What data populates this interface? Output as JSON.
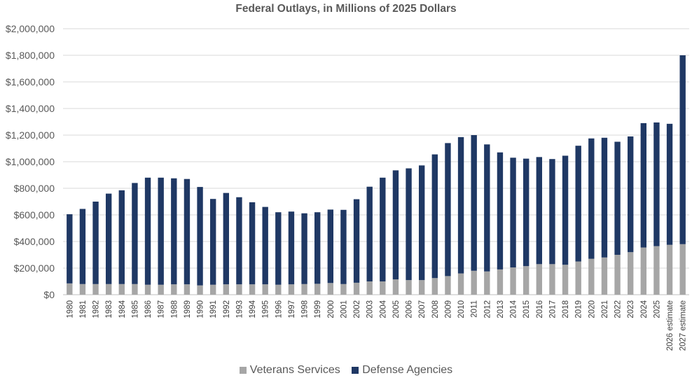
{
  "chart_data": {
    "type": "bar",
    "stacked": true,
    "title": "Federal Outlays, in Millions of 2025 Dollars",
    "xlabel": "",
    "ylabel": "",
    "ylim": [
      0,
      2000000
    ],
    "yticks": [
      0,
      200000,
      400000,
      600000,
      800000,
      1000000,
      1200000,
      1400000,
      1600000,
      1800000,
      2000000
    ],
    "ytick_labels": [
      "$0",
      "$200,000",
      "$400,000",
      "$600,000",
      "$800,000",
      "$1,000,000",
      "$1,200,000",
      "$1,400,000",
      "$1,600,000",
      "$1,800,000",
      "$2,000,000"
    ],
    "grid": true,
    "legend_position": "bottom",
    "categories": [
      "1980",
      "1981",
      "1982",
      "1983",
      "1984",
      "1985",
      "1986",
      "1987",
      "1988",
      "1989",
      "1990",
      "1991",
      "1992",
      "1993",
      "1994",
      "1995",
      "1996",
      "1997",
      "1998",
      "1999",
      "2000",
      "2001",
      "2002",
      "2003",
      "2004",
      "2005",
      "2006",
      "2007",
      "2008",
      "2009",
      "2010",
      "2011",
      "2012",
      "2013",
      "2014",
      "2015",
      "2016",
      "2017",
      "2018",
      "2019",
      "2020",
      "2021",
      "2022",
      "2023",
      "2024",
      "2025",
      "2026 estimate",
      "2027 estimate"
    ],
    "series": [
      {
        "name": "Veterans Services",
        "color": "#a6a6a6",
        "values": [
          85000,
          80000,
          80000,
          80000,
          80000,
          80000,
          75000,
          75000,
          78000,
          78000,
          70000,
          75000,
          78000,
          78000,
          78000,
          78000,
          75000,
          78000,
          80000,
          82000,
          88000,
          80000,
          90000,
          100000,
          100000,
          115000,
          110000,
          110000,
          125000,
          140000,
          160000,
          180000,
          175000,
          190000,
          205000,
          215000,
          230000,
          230000,
          225000,
          250000,
          270000,
          280000,
          300000,
          320000,
          355000,
          365000,
          375000,
          380000
        ]
      },
      {
        "name": "Defense Agencies",
        "color": "#1f3864",
        "values": [
          520000,
          565000,
          620000,
          680000,
          705000,
          760000,
          805000,
          805000,
          797000,
          792000,
          740000,
          645000,
          687000,
          655000,
          617000,
          582000,
          545000,
          547000,
          532000,
          538000,
          552000,
          558000,
          628000,
          712000,
          780000,
          820000,
          840000,
          862000,
          930000,
          1000000,
          1025000,
          1020000,
          955000,
          880000,
          825000,
          808000,
          805000,
          790000,
          820000,
          870000,
          905000,
          900000,
          850000,
          870000,
          935000,
          930000,
          910000,
          1420000
        ]
      }
    ]
  }
}
